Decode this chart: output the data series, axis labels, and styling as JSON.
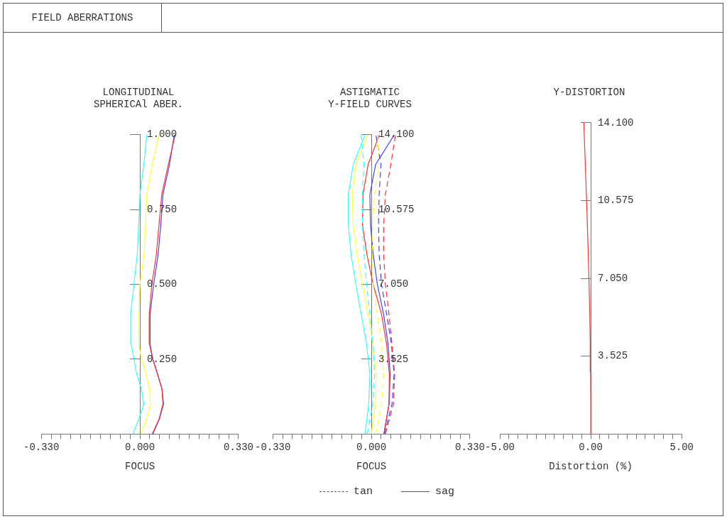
{
  "chart_data": [
    {
      "type": "other",
      "title": "FIELD ABERRATIONS"
    },
    {
      "type": "line",
      "title": "LONGITUDINAL\nSPHERICAl ABER.",
      "xlabel": "FOCUS",
      "xlim": [
        -0.33,
        0.33
      ],
      "xticks": [
        {
          "value": -0.33,
          "label": "-0.330"
        },
        {
          "value": -0.297,
          "label": null
        },
        {
          "value": -0.264,
          "label": null
        },
        {
          "value": -0.231,
          "label": null
        },
        {
          "value": -0.198,
          "label": null
        },
        {
          "value": -0.165,
          "label": null
        },
        {
          "value": -0.132,
          "label": null
        },
        {
          "value": -0.099,
          "label": null
        },
        {
          "value": -0.066,
          "label": null
        },
        {
          "value": -0.033,
          "label": null
        },
        {
          "value": 0,
          "label": "0.000"
        },
        {
          "value": 0.033,
          "label": null
        },
        {
          "value": 0.066,
          "label": null
        },
        {
          "value": 0.099,
          "label": null
        },
        {
          "value": 0.132,
          "label": null
        },
        {
          "value": 0.165,
          "label": null
        },
        {
          "value": 0.198,
          "label": null
        },
        {
          "value": 0.231,
          "label": null
        },
        {
          "value": 0.264,
          "label": null
        },
        {
          "value": 0.297,
          "label": null
        },
        {
          "value": 0.33,
          "label": "0.330"
        }
      ],
      "ylim": [
        0,
        1
      ],
      "yticks": [
        {
          "value": 0.25,
          "label": "0.250"
        },
        {
          "value": 0.5,
          "label": "0.500"
        },
        {
          "value": 0.75,
          "label": "0.750"
        },
        {
          "value": 1,
          "label": "1.000"
        }
      ],
      "grid": false,
      "legend": false,
      "series": [
        {
          "color": "#33ffff",
          "line_style": "solid",
          "x": [
            -0.023,
            -0.004,
            0.013,
            0.005,
            -0.011,
            -0.02,
            -0.029,
            -0.031,
            -0.02,
            -0.009,
            -0.004,
            0,
            0.013,
            0.023
          ],
          "values": [
            0,
            0.05,
            0.1,
            0.15,
            0.2,
            0.25,
            0.3,
            0.4,
            0.5,
            0.6,
            0.7,
            0.8,
            0.9,
            1
          ]
        },
        {
          "color": "#ffff33",
          "line_style": "solid",
          "x": [
            0.002,
            0.023,
            0.035,
            0.032,
            0.021,
            0.005,
            -0.004,
            -0.005,
            0,
            0.014,
            0.019,
            0.023,
            0.041,
            0.064
          ],
          "values": [
            0,
            0.05,
            0.1,
            0.15,
            0.2,
            0.25,
            0.3,
            0.4,
            0.5,
            0.6,
            0.7,
            0.8,
            0.9,
            1
          ]
        },
        {
          "color": "#ff3333",
          "line_style": "solid",
          "x": [
            0.041,
            0.064,
            0.077,
            0.074,
            0.059,
            0.043,
            0.032,
            0.031,
            0.04,
            0.055,
            0.064,
            0.073,
            0.095,
            0.118
          ],
          "values": [
            0,
            0.05,
            0.1,
            0.15,
            0.2,
            0.25,
            0.3,
            0.4,
            0.5,
            0.6,
            0.7,
            0.8,
            0.9,
            1
          ]
        },
        {
          "color": "#4444ff",
          "line_style": "solid",
          "x": [
            0.043,
            0.065,
            0.079,
            0.074,
            0.059,
            0.043,
            0.034,
            0.034,
            0.046,
            0.061,
            0.07,
            0.077,
            0.099,
            0.115
          ],
          "values": [
            0,
            0.05,
            0.1,
            0.15,
            0.2,
            0.25,
            0.3,
            0.4,
            0.5,
            0.6,
            0.7,
            0.8,
            0.9,
            1
          ]
        }
      ]
    },
    {
      "type": "line",
      "title": "ASTIGMATIC\nY-FIELD CURVES",
      "xlabel": "FOCUS",
      "xlim": [
        -0.33,
        0.33
      ],
      "xticks": [
        {
          "value": -0.33,
          "label": "-0.330"
        },
        {
          "value": -0.297,
          "label": null
        },
        {
          "value": -0.264,
          "label": null
        },
        {
          "value": -0.231,
          "label": null
        },
        {
          "value": -0.198,
          "label": null
        },
        {
          "value": -0.165,
          "label": null
        },
        {
          "value": -0.132,
          "label": null
        },
        {
          "value": -0.099,
          "label": null
        },
        {
          "value": -0.066,
          "label": null
        },
        {
          "value": -0.033,
          "label": null
        },
        {
          "value": 0,
          "label": "0.000"
        },
        {
          "value": 0.033,
          "label": null
        },
        {
          "value": 0.066,
          "label": null
        },
        {
          "value": 0.099,
          "label": null
        },
        {
          "value": 0.132,
          "label": null
        },
        {
          "value": 0.165,
          "label": null
        },
        {
          "value": 0.198,
          "label": null
        },
        {
          "value": 0.231,
          "label": null
        },
        {
          "value": 0.264,
          "label": null
        },
        {
          "value": 0.297,
          "label": null
        },
        {
          "value": 0.33,
          "label": "0.330"
        }
      ],
      "ylim": [
        0,
        14.1
      ],
      "yticks": [
        {
          "value": 3.525,
          "label": "3.525"
        },
        {
          "value": 7.05,
          "label": "7.050"
        },
        {
          "value": 10.575,
          "label": "10.575"
        },
        {
          "value": 14.1,
          "label": "14.100"
        }
      ],
      "grid": false,
      "legend": false,
      "annotations": [
        "tan",
        "sag"
      ],
      "series": [
        {
          "color": "#33ffff",
          "line_style": "dashed",
          "x": [
            -0.014,
            0.005,
            0.011,
            0.006,
            -0.005,
            -0.016,
            -0.025,
            -0.03,
            -0.03,
            -0.025,
            -0.034
          ],
          "values": [
            0,
            1.41,
            2.82,
            4.23,
            5.64,
            7.05,
            8.46,
            9.87,
            11.28,
            12.69,
            14.1
          ]
        },
        {
          "color": "#33ffff",
          "line_style": "solid",
          "x": [
            -0.021,
            -0.009,
            -0.005,
            -0.016,
            -0.034,
            -0.052,
            -0.068,
            -0.077,
            -0.077,
            -0.061,
            -0.021
          ],
          "values": [
            0,
            1.41,
            2.82,
            4.23,
            5.64,
            7.05,
            8.46,
            9.87,
            11.28,
            12.69,
            14.1
          ]
        },
        {
          "color": "#ffff33",
          "line_style": "dashed",
          "x": [
            0.015,
            0.034,
            0.041,
            0.034,
            0.02,
            0.006,
            0.003,
            0.005,
            0.011,
            0.025,
            0.02
          ],
          "values": [
            0,
            1.41,
            2.82,
            4.23,
            5.64,
            7.05,
            8.46,
            9.87,
            11.28,
            12.69,
            14.1
          ]
        },
        {
          "color": "#ffff33",
          "line_style": "solid",
          "x": [
            0,
            0.014,
            0.016,
            0.005,
            -0.011,
            -0.03,
            -0.048,
            -0.061,
            -0.064,
            -0.052,
            -0.011
          ],
          "values": [
            0,
            1.41,
            2.82,
            4.23,
            5.64,
            7.05,
            8.46,
            9.87,
            11.28,
            12.69,
            14.1
          ]
        },
        {
          "color": "#ff3333",
          "line_style": "dashed",
          "x": [
            0.047,
            0.074,
            0.078,
            0.069,
            0.059,
            0.047,
            0.041,
            0.041,
            0.047,
            0.065,
            0.081
          ],
          "values": [
            0,
            1.41,
            2.82,
            4.23,
            5.64,
            7.05,
            8.46,
            9.87,
            11.28,
            12.69,
            14.1
          ]
        },
        {
          "color": "#ff3333",
          "line_style": "solid",
          "x": [
            0.042,
            0.059,
            0.06,
            0.051,
            0.034,
            0.006,
            -0.015,
            -0.03,
            -0.028,
            -0.011,
            0.027
          ],
          "values": [
            0,
            1.41,
            2.82,
            4.23,
            5.64,
            7.05,
            8.46,
            9.87,
            11.28,
            12.69,
            14.1
          ]
        },
        {
          "color": "#4444ff",
          "line_style": "dashed",
          "x": [
            0.044,
            0.069,
            0.076,
            0.067,
            0.051,
            0.034,
            0.026,
            0.024,
            0.026,
            0.032,
            0.015
          ],
          "values": [
            0,
            1.41,
            2.82,
            4.23,
            5.64,
            7.05,
            8.46,
            9.87,
            11.28,
            12.69,
            14.1
          ]
        },
        {
          "color": "#4444ff",
          "line_style": "solid",
          "x": [
            0.042,
            0.059,
            0.063,
            0.056,
            0.041,
            0.02,
            0.006,
            -0.003,
            -0.005,
            0.014,
            0.077
          ],
          "values": [
            0,
            1.41,
            2.82,
            4.23,
            5.64,
            7.05,
            8.46,
            9.87,
            11.28,
            12.69,
            14.1
          ]
        }
      ]
    },
    {
      "type": "line",
      "title": "Y-DISTORTION",
      "xlabel": "Distortion (%)",
      "xlim": [
        -5,
        5
      ],
      "xticks": [
        {
          "value": -5,
          "label": "-5.00"
        },
        {
          "value": -4.5,
          "label": null
        },
        {
          "value": -4,
          "label": null
        },
        {
          "value": -3.5,
          "label": null
        },
        {
          "value": -3,
          "label": null
        },
        {
          "value": -2.5,
          "label": null
        },
        {
          "value": -2,
          "label": null
        },
        {
          "value": -1.5,
          "label": null
        },
        {
          "value": -1,
          "label": null
        },
        {
          "value": -0.5,
          "label": null
        },
        {
          "value": 0,
          "label": "0.00"
        },
        {
          "value": 0.5,
          "label": null
        },
        {
          "value": 1,
          "label": null
        },
        {
          "value": 1.5,
          "label": null
        },
        {
          "value": 2,
          "label": null
        },
        {
          "value": 2.5,
          "label": null
        },
        {
          "value": 3,
          "label": null
        },
        {
          "value": 3.5,
          "label": null
        },
        {
          "value": 4,
          "label": null
        },
        {
          "value": 4.5,
          "label": null
        },
        {
          "value": 5,
          "label": "5.00"
        }
      ],
      "ylim": [
        0,
        14.1
      ],
      "yticks": [
        {
          "value": 3.525,
          "label": "3.525"
        },
        {
          "value": 7.05,
          "label": "7.050"
        },
        {
          "value": 10.575,
          "label": "10.575"
        },
        {
          "value": 14.1,
          "label": "14.100"
        }
      ],
      "grid": false,
      "legend": false,
      "series": [
        {
          "color": "#ff3333",
          "line_style": "solid",
          "x": [
            0,
            0,
            -0.01,
            -0.03,
            -0.06,
            -0.1,
            -0.15,
            -0.2,
            -0.26,
            -0.32,
            -0.38
          ],
          "values": [
            0,
            1.41,
            2.82,
            4.23,
            5.64,
            7.05,
            8.46,
            9.87,
            11.28,
            12.69,
            14.1
          ]
        }
      ]
    }
  ]
}
